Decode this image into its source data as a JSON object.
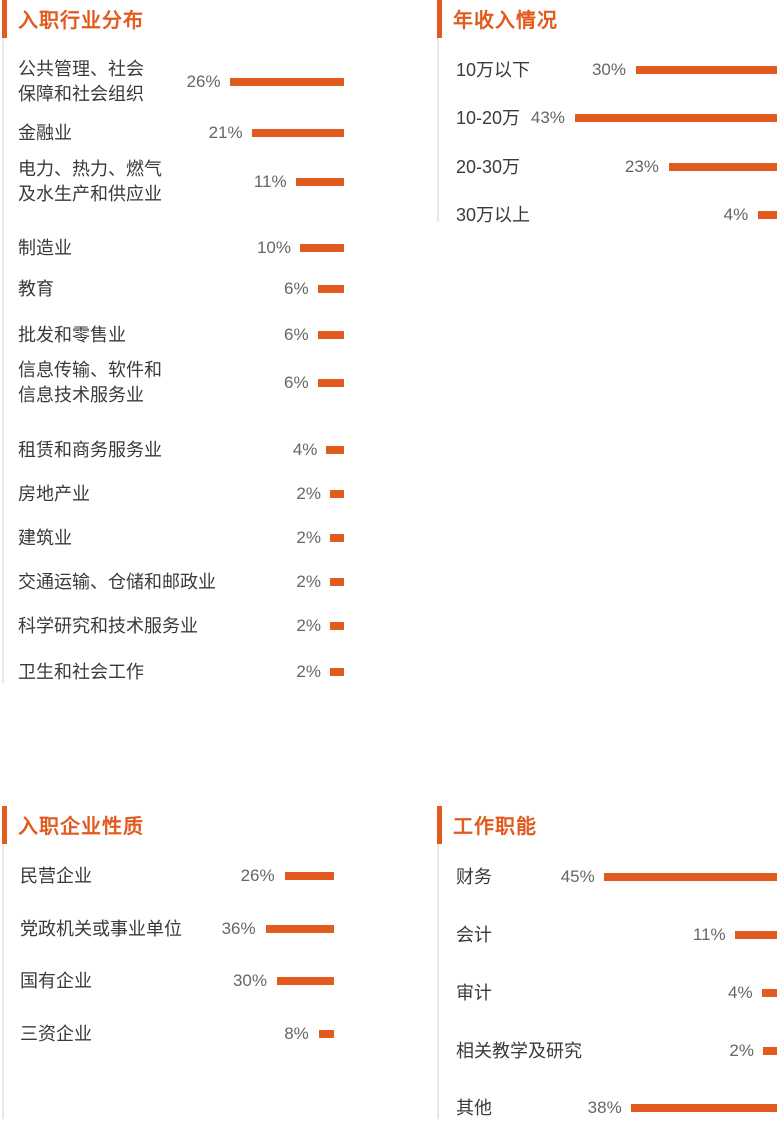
{
  "colors": {
    "accent": "#e15b1e",
    "text": "#3a3a3a",
    "percent": "#666666"
  },
  "chart_data": [
    {
      "type": "bar",
      "title": "入职行业分布",
      "categories": [
        "公共管理、社会保障和社会组织",
        "金融业",
        "电力、热力、燃气及水生产和供应业",
        "制造业",
        "教育",
        "批发和零售业",
        "信息传输、软件和信息技术服务业",
        "租赁和商务服务业",
        "房地产业",
        "建筑业",
        "交通运输、仓储和邮政业",
        "科学研究和技术服务业",
        "卫生和社会工作"
      ],
      "label_lines": [
        [
          "公共管理、社会",
          "保障和社会组织"
        ],
        [
          "金融业"
        ],
        [
          "电力、热力、燃气",
          "及水生产和供应业"
        ],
        [
          "制造业"
        ],
        [
          "教育"
        ],
        [
          "批发和零售业"
        ],
        [
          "信息传输、软件和",
          "信息技术服务业"
        ],
        [
          "租赁和商务服务业"
        ],
        [
          "房地产业"
        ],
        [
          "建筑业"
        ],
        [
          "交通运输、仓储和邮政业"
        ],
        [
          "科学研究和技术服务业"
        ],
        [
          "卫生和社会工作"
        ]
      ],
      "values": [
        26,
        21,
        11,
        10,
        6,
        6,
        6,
        4,
        2,
        2,
        2,
        2,
        2
      ],
      "value_labels": [
        "26%",
        "21%",
        "11%",
        "10%",
        "6%",
        "6%",
        "6%",
        "4%",
        "2%",
        "2%",
        "2%",
        "2%",
        "2%"
      ],
      "unit": "%"
    },
    {
      "type": "bar",
      "title": "年收入情况",
      "categories": [
        "10万以下",
        "10-20万",
        "20-30万",
        "30万以上"
      ],
      "label_lines": [
        [
          "10万以下"
        ],
        [
          "10-20万"
        ],
        [
          "20-30万"
        ],
        [
          "30万以上"
        ]
      ],
      "values": [
        30,
        43,
        23,
        4
      ],
      "value_labels": [
        "30%",
        "43%",
        "23%",
        "4%"
      ],
      "unit": "%"
    },
    {
      "type": "bar",
      "title": "入职企业性质",
      "categories": [
        "民营企业",
        "党政机关或事业单位",
        "国有企业",
        "三资企业"
      ],
      "label_lines": [
        [
          "民营企业"
        ],
        [
          "党政机关或事业单位"
        ],
        [
          "国有企业"
        ],
        [
          "三资企业"
        ]
      ],
      "values": [
        26,
        36,
        30,
        8
      ],
      "value_labels": [
        "26%",
        "36%",
        "30%",
        "8%"
      ],
      "unit": "%"
    },
    {
      "type": "bar",
      "title": "工作职能",
      "categories": [
        "财务",
        "会计",
        "审计",
        "相关教学及研究",
        "其他"
      ],
      "label_lines": [
        [
          "财务"
        ],
        [
          "会计"
        ],
        [
          "审计"
        ],
        [
          "相关教学及研究"
        ],
        [
          "其他"
        ]
      ],
      "values": [
        45,
        11,
        4,
        2,
        38
      ],
      "value_labels": [
        "45%",
        "11%",
        "4%",
        "2%",
        "38%"
      ],
      "unit": "%"
    }
  ]
}
